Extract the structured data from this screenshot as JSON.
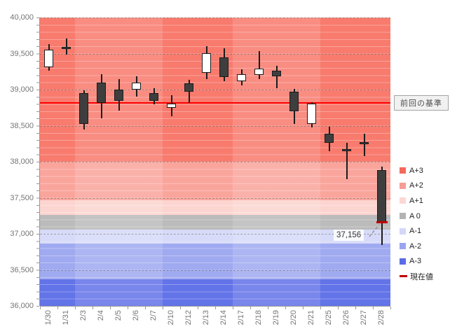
{
  "chart_data": {
    "type": "candlestick",
    "title": "",
    "y_axis": {
      "min": 36000,
      "max": 40000,
      "step": 500,
      "minor_step": 100,
      "tick_labels": [
        "40,000",
        "39,500",
        "39,000",
        "38,500",
        "38,000",
        "37,500",
        "37,000",
        "36,500",
        "36,000"
      ]
    },
    "x_axis": {
      "labels": [
        "1/30",
        "1/31",
        "2/3",
        "2/4",
        "2/5",
        "2/6",
        "2/7",
        "2/10",
        "2/12",
        "2/13",
        "2/14",
        "2/17",
        "2/18",
        "2/19",
        "2/20",
        "2/21",
        "2/25",
        "2/26",
        "2/27",
        "2/28"
      ]
    },
    "candles": [
      {
        "date": "1/30",
        "open": 39315,
        "high": 39630,
        "low": 39260,
        "close": 39550,
        "type": "white"
      },
      {
        "date": "1/31",
        "open": 39585,
        "high": 39710,
        "low": 39490,
        "close": 39595,
        "type": "doji"
      },
      {
        "date": "2/3",
        "open": 38955,
        "high": 38995,
        "low": 38445,
        "close": 38525,
        "type": "black"
      },
      {
        "date": "2/4",
        "open": 39100,
        "high": 39215,
        "low": 38600,
        "close": 38820,
        "type": "black"
      },
      {
        "date": "2/5",
        "open": 39000,
        "high": 39145,
        "low": 38710,
        "close": 38840,
        "type": "black"
      },
      {
        "date": "2/6",
        "open": 39000,
        "high": 39180,
        "low": 38900,
        "close": 39095,
        "type": "white"
      },
      {
        "date": "2/7",
        "open": 38950,
        "high": 39015,
        "low": 38795,
        "close": 38845,
        "type": "black"
      },
      {
        "date": "2/10",
        "open": 38745,
        "high": 38920,
        "low": 38630,
        "close": 38810,
        "type": "white"
      },
      {
        "date": "2/12",
        "open": 39085,
        "high": 39135,
        "low": 38820,
        "close": 38970,
        "type": "black"
      },
      {
        "date": "2/13",
        "open": 39230,
        "high": 39600,
        "low": 39150,
        "close": 39505,
        "type": "white"
      },
      {
        "date": "2/14",
        "open": 39450,
        "high": 39570,
        "low": 39120,
        "close": 39170,
        "type": "black"
      },
      {
        "date": "2/17",
        "open": 39115,
        "high": 39280,
        "low": 39055,
        "close": 39215,
        "type": "white"
      },
      {
        "date": "2/18",
        "open": 39200,
        "high": 39535,
        "low": 39150,
        "close": 39295,
        "type": "white"
      },
      {
        "date": "2/19",
        "open": 39265,
        "high": 39330,
        "low": 39020,
        "close": 39185,
        "type": "black"
      },
      {
        "date": "2/20",
        "open": 38970,
        "high": 39005,
        "low": 38520,
        "close": 38695,
        "type": "black"
      },
      {
        "date": "2/21",
        "open": 38520,
        "high": 38830,
        "low": 38475,
        "close": 38810,
        "type": "white"
      },
      {
        "date": "2/25",
        "open": 38390,
        "high": 38485,
        "low": 38145,
        "close": 38260,
        "type": "black"
      },
      {
        "date": "2/26",
        "open": 38175,
        "high": 38260,
        "low": 37755,
        "close": 38170,
        "type": "doji"
      },
      {
        "date": "2/27",
        "open": 38275,
        "high": 38385,
        "low": 38080,
        "close": 38270,
        "type": "doji"
      },
      {
        "date": "2/28",
        "open": 37880,
        "high": 37935,
        "low": 36845,
        "close": 37156,
        "type": "black"
      }
    ],
    "bands": [
      {
        "label": "A+3",
        "from": 38000,
        "to": 40000,
        "color": "#f87b6e"
      },
      {
        "label": "A+2",
        "from": 37470,
        "to": 38000,
        "color": "#faa59c"
      },
      {
        "label": "A+1",
        "from": 37260,
        "to": 37470,
        "color": "#fcd5d0"
      },
      {
        "label": "A 0",
        "from": 37060,
        "to": 37260,
        "color": "#bcbbbb"
      },
      {
        "label": "A-1",
        "from": 36860,
        "to": 37060,
        "color": "#d7daf8"
      },
      {
        "label": "A-2",
        "from": 36365,
        "to": 36860,
        "color": "#a0aaf0"
      },
      {
        "label": "A-3",
        "from": 36000,
        "to": 36365,
        "color": "#6373e8"
      }
    ],
    "light_column_ranges": [
      [
        2,
        7
      ],
      [
        11,
        16
      ]
    ],
    "reference_line": {
      "label": "前回の基準",
      "value": 38820,
      "color": "#ff0000"
    },
    "current_value": {
      "label": "現在値",
      "value": 37156,
      "display": "37,156",
      "color": "#c00000",
      "date": "2/28"
    },
    "legend": [
      {
        "label": "A+3",
        "color": "#f4695c",
        "marker": "square"
      },
      {
        "label": "A+2",
        "color": "#f79d95",
        "marker": "square"
      },
      {
        "label": "A+1",
        "color": "#fcd7d4",
        "marker": "square"
      },
      {
        "label": "A 0",
        "color": "#b3b3b3",
        "marker": "square"
      },
      {
        "label": "A-1",
        "color": "#d3d8f8",
        "marker": "square"
      },
      {
        "label": "A-2",
        "color": "#9aa5f1",
        "marker": "square"
      },
      {
        "label": "A-3",
        "color": "#5a6ce8",
        "marker": "square"
      },
      {
        "label": "現在値",
        "color": "#c00000",
        "marker": "dash"
      }
    ],
    "candle_colors": {
      "white_fill": "#ffffff",
      "black_fill": "#3e3e3e",
      "border": "#1c1c1c"
    }
  }
}
